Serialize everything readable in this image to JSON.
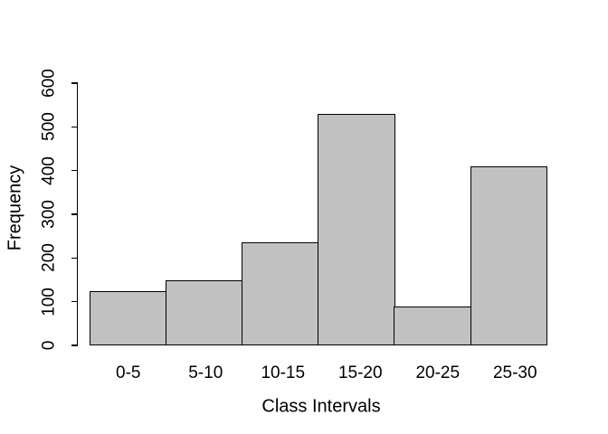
{
  "chart_data": {
    "type": "bar",
    "title": "",
    "categories": [
      "0-5",
      "5-10",
      "10-15",
      "15-20",
      "20-25",
      "25-30"
    ],
    "values": [
      125,
      150,
      235,
      530,
      90,
      410
    ],
    "xlabel": "Class Intervals",
    "ylabel": "Frequency",
    "ylim": [
      0,
      600
    ],
    "yticks": [
      0,
      100,
      200,
      300,
      400,
      500,
      600
    ],
    "grid": false,
    "legend": "none",
    "bar_fill": "#c1c1c1",
    "bar_border": "#000000",
    "background": "#ffffff",
    "text_color": "#000000"
  }
}
